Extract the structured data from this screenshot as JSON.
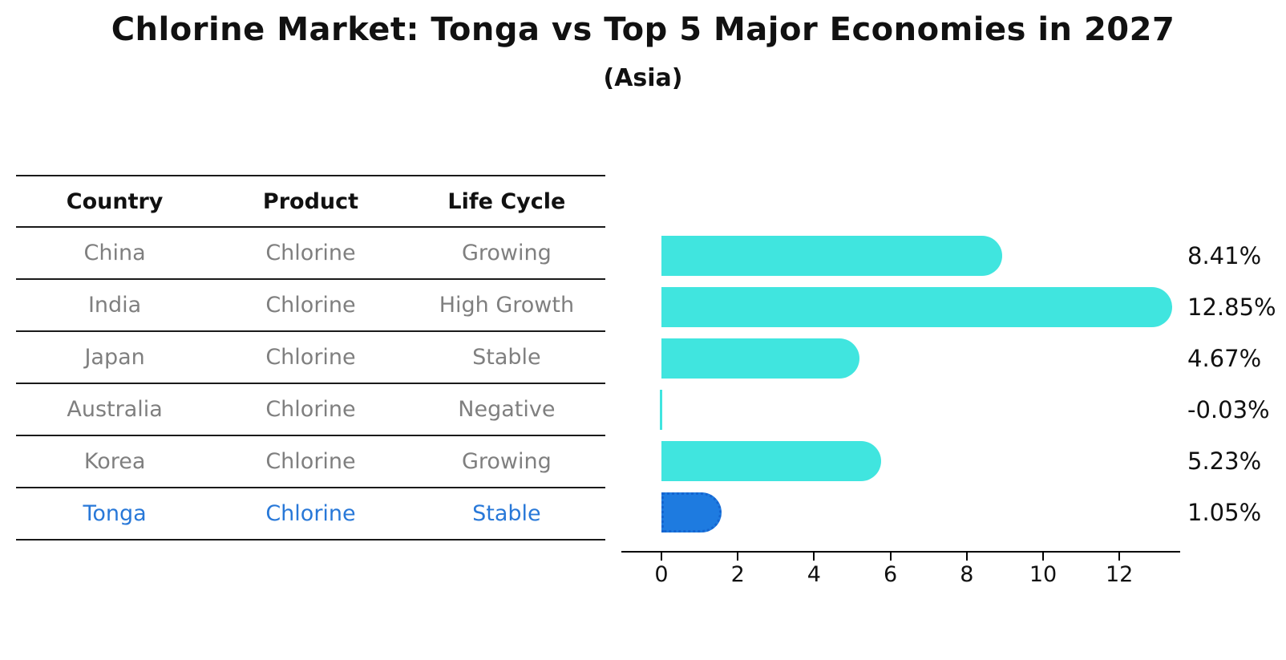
{
  "title": "Chlorine Market: Tonga vs Top 5 Major Economies in 2027",
  "subtitle": "(Asia)",
  "table": {
    "headers": [
      "Country",
      "Product",
      "Life Cycle"
    ],
    "rows": [
      {
        "country": "China",
        "product": "Chlorine",
        "life_cycle": "Growing",
        "highlight": false
      },
      {
        "country": "India",
        "product": "Chlorine",
        "life_cycle": "High Growth",
        "highlight": false
      },
      {
        "country": "Japan",
        "product": "Chlorine",
        "life_cycle": "Stable",
        "highlight": false
      },
      {
        "country": "Australia",
        "product": "Chlorine",
        "life_cycle": "Negative",
        "highlight": false
      },
      {
        "country": "Korea",
        "product": "Chlorine",
        "life_cycle": "Growing",
        "highlight": false
      },
      {
        "country": "Tonga",
        "product": "Chlorine",
        "life_cycle": "Stable",
        "highlight": true
      }
    ]
  },
  "chart_data": {
    "type": "bar",
    "orientation": "horizontal",
    "title": "Chlorine Market: Tonga vs Top 5 Major Economies in 2027",
    "subtitle": "(Asia)",
    "categories": [
      "China",
      "India",
      "Japan",
      "Australia",
      "Korea",
      "Tonga"
    ],
    "values": [
      8.41,
      12.85,
      4.67,
      -0.03,
      5.23,
      1.05
    ],
    "value_labels": [
      "8.41%",
      "12.85%",
      "4.67%",
      "-0.03%",
      "5.23%",
      "1.05%"
    ],
    "unit": "%",
    "xlim": [
      0,
      13.6
    ],
    "x_ticks": [
      0,
      2,
      4,
      6,
      8,
      10,
      12
    ],
    "highlight_index": 5,
    "grid": false,
    "legend": false
  },
  "colors": {
    "bar": "#40e5df",
    "highlight_bar": "#1e7be0",
    "highlight_text": "#2878d8",
    "body_text": "#7f7f7f",
    "header_text": "#111111",
    "axis": "#000000"
  }
}
